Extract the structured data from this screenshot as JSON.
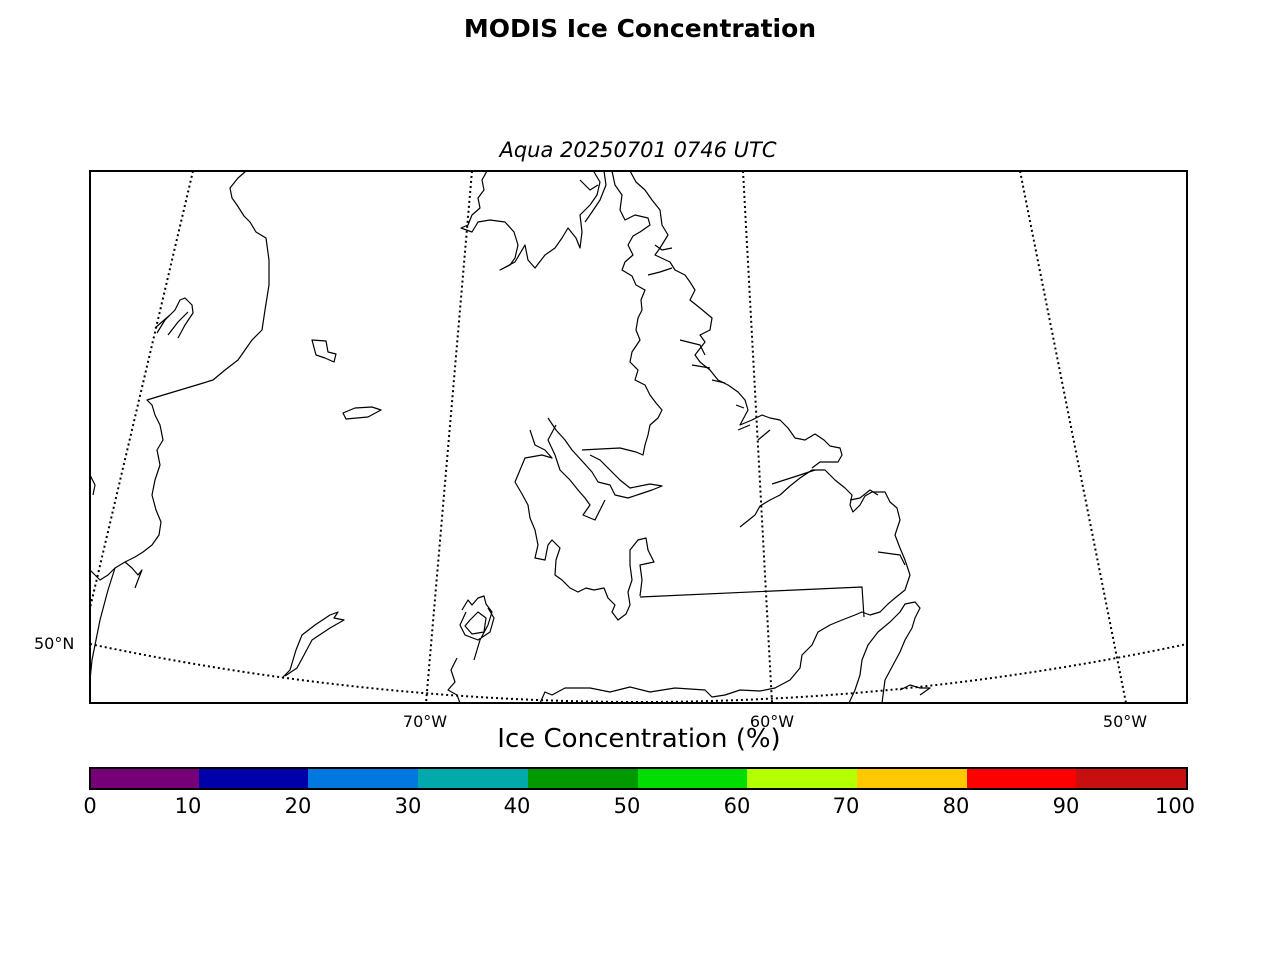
{
  "figure": {
    "title": "MODIS Ice Concentration",
    "subtitle": "Aqua 20250701 0746 UTC"
  },
  "map": {
    "region": "Labrador / Quebec / Newfoundland",
    "projection": "conic",
    "lon_labels": [
      "70°W",
      "60°W",
      "50°W"
    ],
    "lat_labels": [
      "50°N"
    ],
    "gridline_style": "dotted",
    "ice_present": false
  },
  "colorbar": {
    "label": "Ice Concentration (%)",
    "ticks": [
      "0",
      "10",
      "20",
      "30",
      "40",
      "50",
      "60",
      "70",
      "80",
      "90",
      "100"
    ],
    "colors": [
      "#750078",
      "#0000aa",
      "#0078e0",
      "#00aaaa",
      "#009900",
      "#00dd00",
      "#b4ff00",
      "#ffc800",
      "#ff0000",
      "#c80f0f"
    ]
  }
}
